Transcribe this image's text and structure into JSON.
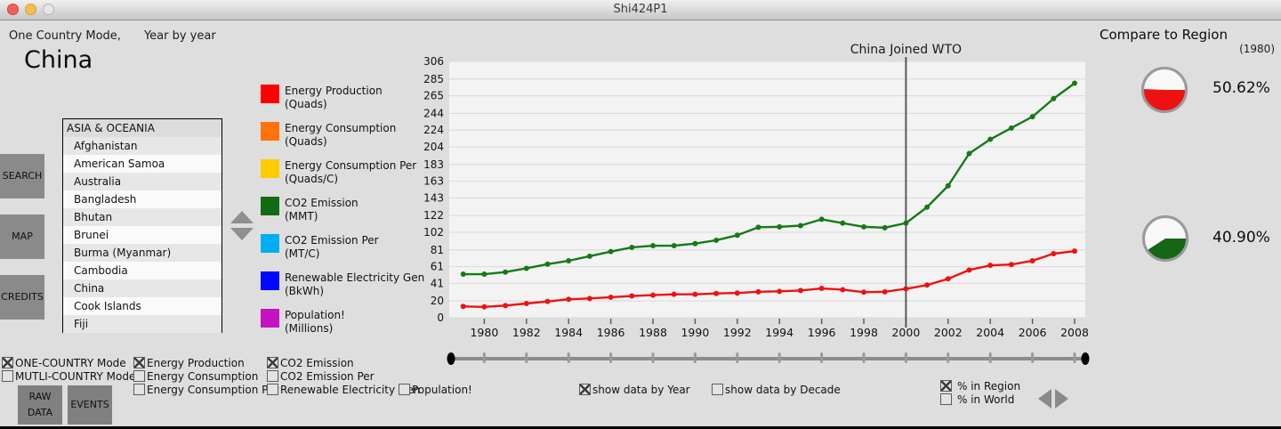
{
  "window": {
    "title": "Shi424P1"
  },
  "header": {
    "mode_left": "One Country Mode,",
    "mode_right": "Year by year",
    "country": "China"
  },
  "sidebar": {
    "buttons": [
      {
        "label": "SEARCH"
      },
      {
        "label": "MAP"
      },
      {
        "label": "CREDITS"
      }
    ],
    "list": {
      "header": "ASIA & OCEANIA",
      "items": [
        "Afghanistan",
        "American Samoa",
        "Australia",
        "Bangladesh",
        "Bhutan",
        "Brunei",
        "Burma (Myanmar)",
        "Cambodia",
        "China",
        "Cook Islands",
        "Fiji"
      ]
    }
  },
  "legend": {
    "items": [
      {
        "label": "Energy Production",
        "unit": "(Quads)",
        "color": "#ff0000"
      },
      {
        "label": "Energy Consumption",
        "unit": "(Quads)",
        "color": "#ff730a"
      },
      {
        "label": "Energy Consumption Per",
        "unit": "(Quads/C)",
        "color": "#ffcc00"
      },
      {
        "label": "CO2 Emission",
        "unit": "(MMT)",
        "color": "#156b15"
      },
      {
        "label": "CO2 Emission Per",
        "unit": "(MT/C)",
        "color": "#00aeef"
      },
      {
        "label": "Renewable Electricity Gen",
        "unit": "(BkWh)",
        "color": "#0008ff"
      },
      {
        "label": "Population!",
        "unit": "(Millions)",
        "color": "#c313c3"
      }
    ]
  },
  "chart_data": {
    "type": "line",
    "x": [
      1980,
      1981,
      1982,
      1983,
      1984,
      1985,
      1986,
      1987,
      1988,
      1989,
      1990,
      1991,
      1992,
      1993,
      1994,
      1995,
      1996,
      1997,
      1998,
      1999,
      2000,
      2001,
      2002,
      2003,
      2004,
      2005,
      2006,
      2007,
      2008,
      2009
    ],
    "series": [
      {
        "name": "CO2 Emission (MMT)",
        "color": "#157a15",
        "values": [
          52,
          52,
          54.5,
          59,
          64,
          68,
          73.5,
          79,
          84,
          86,
          86,
          88.5,
          92.5,
          98.5,
          108,
          108.5,
          110,
          117.5,
          113,
          108.5,
          107.5,
          113,
          132,
          157.5,
          196,
          213,
          226.5,
          240,
          261.5,
          280
        ]
      },
      {
        "name": "Energy Production (Quads)",
        "color": "#ee1111",
        "values": [
          13.5,
          13,
          14.5,
          17,
          19.5,
          22,
          23,
          24.5,
          26,
          27,
          28,
          28,
          29,
          29.5,
          31,
          31.5,
          32.5,
          35,
          33.5,
          30.5,
          31,
          34.5,
          39,
          46.5,
          57,
          62.5,
          63.5,
          68,
          76.5,
          79.5
        ]
      }
    ],
    "annotation": {
      "label": "China Joined WTO",
      "x": 2001
    },
    "y_tick_labels": [
      "0",
      "20",
      "41",
      "61",
      "81",
      "102",
      "122",
      "143",
      "163",
      "183",
      "204",
      "224",
      "244",
      "265",
      "285",
      "306"
    ],
    "x_tick_labels": [
      "1980",
      "1982",
      "1984",
      "1986",
      "1988",
      "1990",
      "1992",
      "1994",
      "1996",
      "1998",
      "2000",
      "2002",
      "2004",
      "2006",
      "2008"
    ],
    "ylim": [
      0,
      306
    ],
    "grid": true
  },
  "compare": {
    "title": "Compare to Region",
    "year_note": "(1980)",
    "pies": [
      {
        "label": "50.62%",
        "pct": 50.62,
        "color": "#ee1111"
      },
      {
        "label": "40.90%",
        "pct": 40.9,
        "color": "#156615"
      }
    ]
  },
  "controls": {
    "mode_checks": [
      {
        "label": "ONE-COUNTRY Mode",
        "checked": true
      },
      {
        "label": "MUTLI-COUNTRY Mode",
        "checked": false
      }
    ],
    "series_checks": [
      {
        "label": "Energy Production",
        "checked": true
      },
      {
        "label": "Energy Consumption",
        "checked": false
      },
      {
        "label": "Energy Consumption Per",
        "checked": false
      },
      {
        "label": "CO2 Emission",
        "checked": true
      },
      {
        "label": "CO2 Emission Per",
        "checked": false
      },
      {
        "label": "Renewable Electricity Gen",
        "checked": false
      },
      {
        "label": "Population!",
        "checked": false
      }
    ],
    "data_by_checks": [
      {
        "label": "show data by Year",
        "checked": true
      },
      {
        "label": "show data by Decade",
        "checked": false
      }
    ],
    "pct_checks": [
      {
        "label": "% in Region",
        "checked": true
      },
      {
        "label": "% in World",
        "checked": false
      }
    ],
    "buttons": [
      {
        "label": "RAW DATA"
      },
      {
        "label": "EVENTS"
      }
    ]
  }
}
